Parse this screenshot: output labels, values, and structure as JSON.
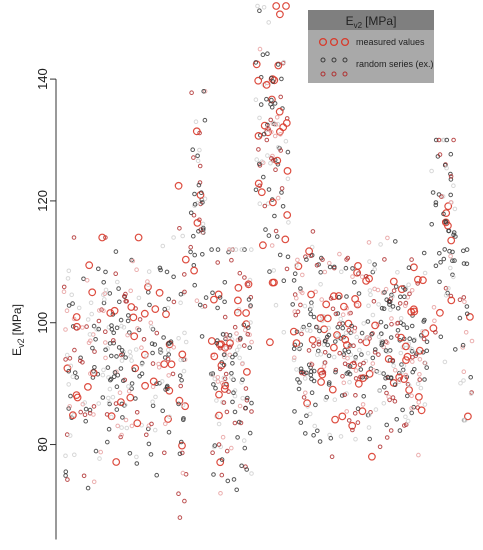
{
  "chart_data": {
    "type": "scatter",
    "ylim": [
      64,
      152
    ],
    "yticks": [
      80,
      100,
      120,
      140
    ],
    "y_axis_label": {
      "symbol": "E",
      "subscript": "v2",
      "unit": "[MPa]"
    },
    "legend": {
      "position": "top-right",
      "title": {
        "symbol": "E",
        "subscript": "v2",
        "unit": "[MPa]"
      },
      "entries": [
        "measured values",
        "random series (ex.)"
      ]
    },
    "colors": {
      "measured": "#d93a2b",
      "random_dark": "#3a3a3a",
      "random_red": "#b03030",
      "random_light": "#d0d0d0",
      "random_pink": "#e8a0a0",
      "legend_header": "#7f7f7f",
      "legend_body": "#a9a9a9",
      "axis": "#333333"
    },
    "segments": [
      {
        "x": [
          0.0,
          0.27
        ],
        "ymin": 70,
        "ymax": 114,
        "center": 94,
        "spread": 9
      },
      {
        "x": [
          0.28,
          0.3
        ],
        "ymin": 68,
        "ymax": 124,
        "center": 94,
        "spread": 14
      },
      {
        "x": [
          0.31,
          0.35
        ],
        "ymin": 90,
        "ymax": 138,
        "center": 120,
        "spread": 11
      },
      {
        "x": [
          0.36,
          0.46
        ],
        "ymin": 72,
        "ymax": 112,
        "center": 93,
        "spread": 10
      },
      {
        "x": [
          0.47,
          0.55
        ],
        "ymin": 96,
        "ymax": 152,
        "center": 128,
        "spread": 12
      },
      {
        "x": [
          0.56,
          0.89
        ],
        "ymin": 78,
        "ymax": 115,
        "center": 97,
        "spread": 8
      },
      {
        "x": [
          0.9,
          0.96
        ],
        "ymin": 90,
        "ymax": 130,
        "center": 115,
        "spread": 11
      },
      {
        "x": [
          0.97,
          1.0
        ],
        "ymin": 84,
        "ymax": 112,
        "center": 98,
        "spread": 9
      }
    ],
    "points_per_segment": [
      300,
      35,
      50,
      160,
      120,
      480,
      70,
      25
    ]
  }
}
